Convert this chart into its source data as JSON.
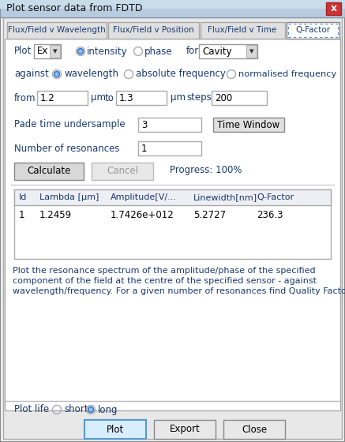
{
  "title": "Plot sensor data from FDTD",
  "bg_color": "#f0f0f0",
  "title_bar_color": "#b8cce4",
  "close_btn_color": "#cc3333",
  "tabs": [
    "Flux/Field v Wavelength",
    "Flux/Field v Position",
    "Flux/Field v Time",
    "Q-Factor"
  ],
  "active_tab": 3,
  "field_component": "Ex",
  "cavity_label": "Cavity",
  "from_val": "1.2",
  "to_val": "1.3",
  "steps_val": "200",
  "pade_label": "Pade time undersample",
  "pade_val": "3",
  "time_window_btn": "Time Window",
  "num_resonances_label": "Number of resonances",
  "num_resonances_val": "1",
  "calc_btn": "Calculate",
  "cancel_btn": "Cancel",
  "progress_text": "Progress: 100%",
  "table_headers": [
    "Id",
    "Lambda [μm]",
    "Amplitude[V/...",
    "Linewidth[nm]",
    "Q-Factor"
  ],
  "table_row": [
    "1",
    "1.2459",
    "1.7426e+012",
    "5.2727",
    "236.3"
  ],
  "description_lines": [
    "Plot the resonance spectrum of the amplitude/phase of the specified",
    "component of the field at the centre of the specified sensor - against",
    "wavelength/frequency. For a given number of resonances find Quality Factors."
  ],
  "plot_life_label": "Plot life",
  "short_label": "short",
  "long_label": "long",
  "bottom_plot_btn": "Plot",
  "export_btn": "Export",
  "close_btn_label": "Close",
  "text_color": "#1a3a6e",
  "black": "#000000",
  "gray_text": "#888888",
  "border_color": "#aaaaaa",
  "tab_inactive_bg": "#e0e0e0",
  "tab_active_bg": "#ffffff",
  "inner_bg": "#ffffff",
  "outer_bg": "#e8e8e8",
  "header_bg": "#f0f0f8",
  "btn_bg": "#e0e0e0",
  "plot_btn_bg": "#d8eeff",
  "plot_btn_border": "#5599cc",
  "title_bar_gradient_top": "#c8daf0",
  "title_bar_gradient_bot": "#a0b8d8"
}
